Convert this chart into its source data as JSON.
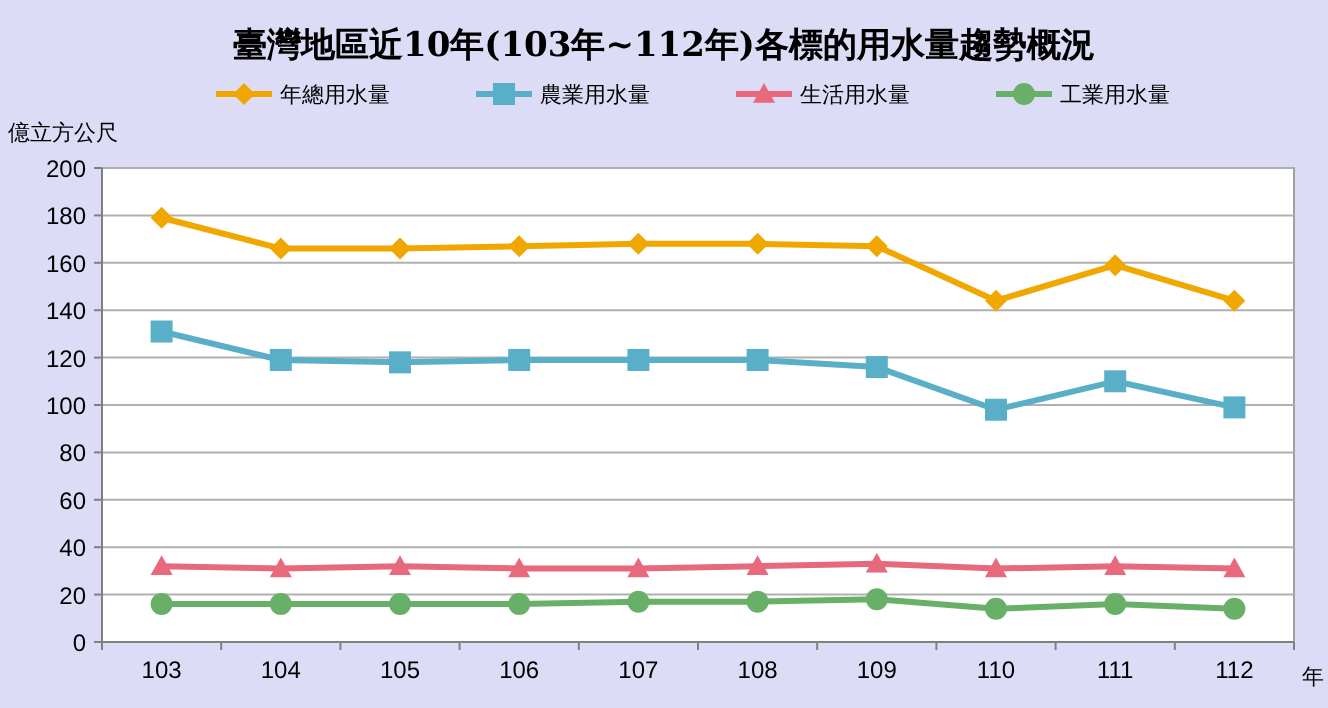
{
  "chart_data": {
    "type": "line",
    "title": "臺灣地區近10年(103年~112年)各標的用水量趨勢概況",
    "ylabel": "億立方公尺",
    "xlabel": "年",
    "categories": [
      "103",
      "104",
      "105",
      "106",
      "107",
      "108",
      "109",
      "110",
      "111",
      "112"
    ],
    "series": [
      {
        "name": "年總用水量",
        "color": "#f0a800",
        "marker": "diamond",
        "values": [
          179,
          166,
          166,
          167,
          168,
          168,
          167,
          144,
          159,
          144
        ]
      },
      {
        "name": "農業用水量",
        "color": "#5aafc8",
        "marker": "square",
        "values": [
          131,
          119,
          118,
          119,
          119,
          119,
          116,
          98,
          110,
          99
        ]
      },
      {
        "name": "生活用水量",
        "color": "#e8687c",
        "marker": "triangle",
        "values": [
          32,
          31,
          32,
          31,
          31,
          32,
          33,
          31,
          32,
          31
        ]
      },
      {
        "name": "工業用水量",
        "color": "#68b068",
        "marker": "circle",
        "values": [
          16,
          16,
          16,
          16,
          17,
          17,
          18,
          14,
          16,
          14
        ]
      }
    ],
    "ylim": [
      0,
      200
    ],
    "yticks": [
      0,
      20,
      40,
      60,
      80,
      100,
      120,
      140,
      160,
      180,
      200
    ],
    "grid": "y",
    "legend": "top",
    "line_style": "solid"
  }
}
